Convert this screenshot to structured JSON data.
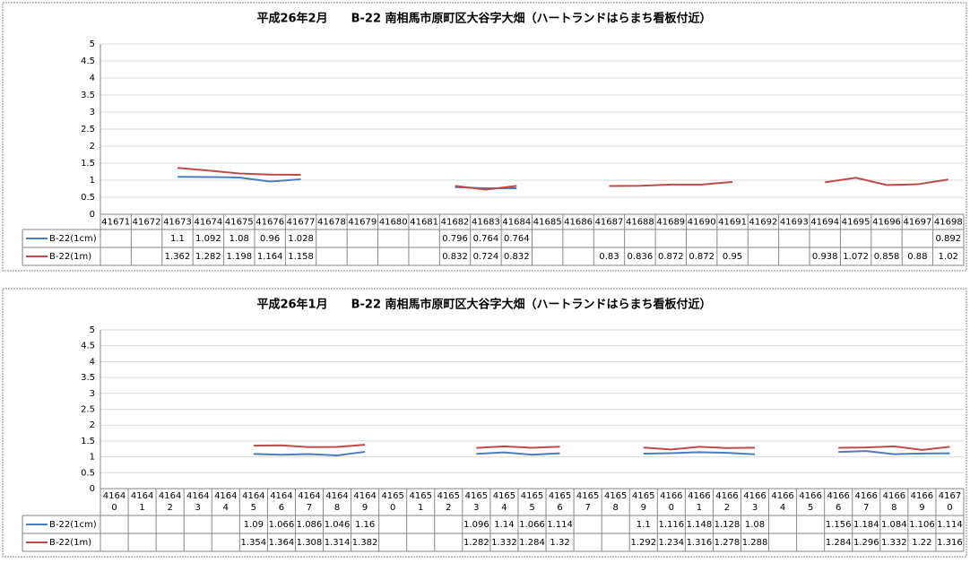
{
  "chart_data": [
    {
      "type": "line",
      "title": "平成26年2月　　B-22 南相馬市原町区大谷字大畑（ハートランドはらまち看板付近）",
      "categories": [
        41671,
        41672,
        41673,
        41674,
        41675,
        41676,
        41677,
        41678,
        41679,
        41680,
        41681,
        41682,
        41683,
        41684,
        41685,
        41686,
        41687,
        41688,
        41689,
        41690,
        41691,
        41692,
        41693,
        41694,
        41695,
        41696,
        41697,
        41698
      ],
      "series": [
        {
          "name": "B-22(1cm)",
          "color": "#4a7ebb",
          "values": [
            null,
            null,
            1.1,
            1.092,
            1.08,
            0.96,
            1.028,
            null,
            null,
            null,
            null,
            0.796,
            0.764,
            0.764,
            null,
            null,
            null,
            null,
            null,
            null,
            null,
            null,
            null,
            null,
            null,
            null,
            null,
            0.892
          ]
        },
        {
          "name": "B-22(1m)",
          "color": "#be4b48",
          "values": [
            null,
            null,
            1.362,
            1.282,
            1.198,
            1.164,
            1.158,
            null,
            null,
            null,
            null,
            0.832,
            0.724,
            0.832,
            null,
            null,
            0.83,
            0.836,
            0.872,
            0.872,
            0.95,
            null,
            null,
            0.938,
            1.072,
            0.858,
            0.88,
            1.02
          ]
        }
      ],
      "ylim": [
        0,
        5
      ],
      "yticks": [
        0,
        0.5,
        1,
        1.5,
        2,
        2.5,
        3,
        3.5,
        4,
        4.5,
        5
      ],
      "grid": true
    },
    {
      "type": "line",
      "title": "平成26年1月　　B-22 南相馬市原町区大谷字大畑（ハートランドはらまち看板付近）",
      "categories": [
        41640,
        41641,
        41642,
        41643,
        41644,
        41645,
        41646,
        41647,
        41648,
        41649,
        41650,
        41651,
        41652,
        41653,
        41654,
        41655,
        41656,
        41657,
        41658,
        41659,
        41660,
        41661,
        41662,
        41663,
        41664,
        41665,
        41666,
        41667,
        41668,
        41669,
        41670
      ],
      "series": [
        {
          "name": "B-22(1cm)",
          "color": "#4a7ebb",
          "values": [
            null,
            null,
            null,
            null,
            null,
            1.09,
            1.066,
            1.086,
            1.046,
            1.16,
            null,
            null,
            null,
            1.096,
            1.14,
            1.066,
            1.114,
            null,
            null,
            1.1,
            1.116,
            1.148,
            1.128,
            1.08,
            null,
            null,
            1.156,
            1.184,
            1.084,
            1.106,
            1.114
          ]
        },
        {
          "name": "B-22(1m)",
          "color": "#be4b48",
          "values": [
            null,
            null,
            null,
            null,
            null,
            1.354,
            1.364,
            1.308,
            1.314,
            1.382,
            null,
            null,
            null,
            1.282,
            1.332,
            1.284,
            1.32,
            null,
            null,
            1.292,
            1.234,
            1.316,
            1.278,
            1.288,
            null,
            null,
            1.284,
            1.296,
            1.332,
            1.22,
            1.316
          ]
        }
      ],
      "ylim": [
        0,
        5
      ],
      "yticks": [
        0,
        0.5,
        1,
        1.5,
        2,
        2.5,
        3,
        3.5,
        4,
        4.5,
        5
      ],
      "grid": true
    }
  ]
}
